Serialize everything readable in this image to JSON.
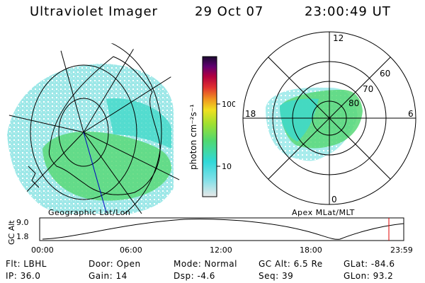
{
  "header": {
    "title": "Ultraviolet Imager",
    "date": "29 Oct 07",
    "time": "23:00:49 UT"
  },
  "left_panel": {
    "caption": "Geographic Lat/Lon"
  },
  "right_panel": {
    "caption": "Apex MLat/MLT",
    "mlt_labels": {
      "top": "12",
      "right": "6",
      "bottom": "0",
      "left": "18"
    },
    "lat_labels": [
      "80",
      "70",
      "60"
    ]
  },
  "colorbar": {
    "unit_label": "photon cm⁻²s⁻¹",
    "tick_labels": [
      "100",
      "10"
    ],
    "scale": "log",
    "colors": [
      "#e8e8e8",
      "#80e0e8",
      "#30d8d8",
      "#50d870",
      "#a0e030",
      "#f0e020",
      "#f09020",
      "#e03030",
      "#b00040",
      "#600070",
      "#1a0a30"
    ]
  },
  "altitude_plot": {
    "ylabel": "GC Alt",
    "y_ticks": [
      "9.0",
      "1.8"
    ],
    "x_ticks": [
      "00:00",
      "06:00",
      "12:00",
      "18:00",
      "23:59"
    ],
    "current_time_marker": "23:00",
    "marker_color": "#e00000"
  },
  "status": {
    "flt": "Flt: LBHL",
    "ip": "IP: 36.0",
    "door": "Door: Open",
    "gain": "Gain: 14",
    "mode": "Mode: Normal",
    "dsp": "Dsp:    -4.6",
    "gc_alt": "GC Alt: 6.5 Re",
    "seq": "Seq: 39",
    "glat": "GLat: -84.6",
    "glon": "GLon:  93.2"
  }
}
